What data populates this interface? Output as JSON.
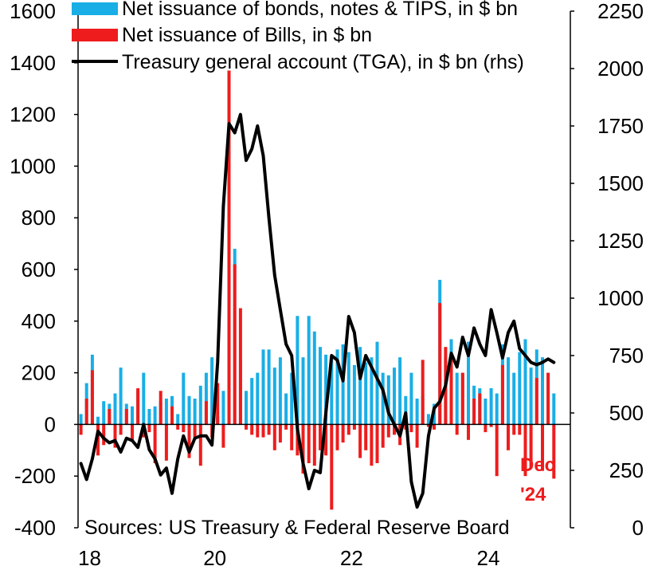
{
  "chart_data": {
    "type": "bar",
    "title": "",
    "xlabel": "",
    "ylabel": "",
    "ylim": [
      -400,
      1600
    ],
    "y2lim": [
      0,
      2250
    ],
    "yticks": [
      -400,
      -200,
      0,
      200,
      400,
      600,
      800,
      1000,
      1200,
      1400,
      1600
    ],
    "y2ticks": [
      0,
      250,
      500,
      750,
      1000,
      1250,
      1500,
      1750,
      2000,
      2250
    ],
    "xlim": [
      2018.0,
      2025.2
    ],
    "xticks": [
      {
        "value": 2018,
        "label": "18"
      },
      {
        "value": 2020,
        "label": "20"
      },
      {
        "value": 2022,
        "label": "22"
      },
      {
        "value": 2024,
        "label": "24"
      }
    ],
    "legend_position": "top-left",
    "series": [
      {
        "name": "Net issuance of bonds, notes & TIPS, in $ bn",
        "type": "bar",
        "axis": "left",
        "color": "#19aee6",
        "x": [
          "2018-01",
          "2018-02",
          "2018-03",
          "2018-04",
          "2018-05",
          "2018-06",
          "2018-07",
          "2018-08",
          "2018-09",
          "2018-10",
          "2018-11",
          "2018-12",
          "2019-01",
          "2019-02",
          "2019-03",
          "2019-04",
          "2019-05",
          "2019-06",
          "2019-07",
          "2019-08",
          "2019-09",
          "2019-10",
          "2019-11",
          "2019-12",
          "2020-01",
          "2020-02",
          "2020-03",
          "2020-04",
          "2020-05",
          "2020-06",
          "2020-07",
          "2020-08",
          "2020-09",
          "2020-10",
          "2020-11",
          "2020-12",
          "2021-01",
          "2021-02",
          "2021-03",
          "2021-04",
          "2021-05",
          "2021-06",
          "2021-07",
          "2021-08",
          "2021-09",
          "2021-10",
          "2021-11",
          "2021-12",
          "2022-01",
          "2022-02",
          "2022-03",
          "2022-04",
          "2022-05",
          "2022-06",
          "2022-07",
          "2022-08",
          "2022-09",
          "2022-10",
          "2022-11",
          "2022-12",
          "2023-01",
          "2023-02",
          "2023-03",
          "2023-04",
          "2023-05",
          "2023-06",
          "2023-07",
          "2023-08",
          "2023-09",
          "2023-10",
          "2023-11",
          "2023-12",
          "2024-01",
          "2024-02",
          "2024-03",
          "2024-04",
          "2024-05",
          "2024-06",
          "2024-07",
          "2024-08",
          "2024-09",
          "2024-10",
          "2024-11",
          "2024-12"
        ],
        "values": [
          40,
          160,
          270,
          30,
          90,
          80,
          120,
          220,
          80,
          70,
          130,
          200,
          60,
          70,
          90,
          100,
          110,
          40,
          200,
          110,
          100,
          150,
          200,
          260,
          30,
          130,
          700,
          680,
          250,
          130,
          180,
          200,
          290,
          290,
          220,
          260,
          120,
          200,
          420,
          260,
          420,
          360,
          300,
          270,
          260,
          290,
          310,
          280,
          230,
          300,
          240,
          260,
          320,
          200,
          190,
          220,
          260,
          110,
          200,
          100,
          110,
          40,
          80,
          560,
          260,
          330,
          200,
          200,
          320,
          150,
          140,
          100,
          140,
          120,
          310,
          260,
          200,
          280,
          330,
          220,
          290,
          260,
          200,
          120
        ]
      },
      {
        "name": "Net issuance of Bills, in $ bn",
        "type": "bar",
        "axis": "left",
        "color": "#ee1c1c",
        "x": [
          "2018-01",
          "2018-02",
          "2018-03",
          "2018-04",
          "2018-05",
          "2018-06",
          "2018-07",
          "2018-08",
          "2018-09",
          "2018-10",
          "2018-11",
          "2018-12",
          "2019-01",
          "2019-02",
          "2019-03",
          "2019-04",
          "2019-05",
          "2019-06",
          "2019-07",
          "2019-08",
          "2019-09",
          "2019-10",
          "2019-11",
          "2019-12",
          "2020-01",
          "2020-02",
          "2020-03",
          "2020-04",
          "2020-05",
          "2020-06",
          "2020-07",
          "2020-08",
          "2020-09",
          "2020-10",
          "2020-11",
          "2020-12",
          "2021-01",
          "2021-02",
          "2021-03",
          "2021-04",
          "2021-05",
          "2021-06",
          "2021-07",
          "2021-08",
          "2021-09",
          "2021-10",
          "2021-11",
          "2021-12",
          "2022-01",
          "2022-02",
          "2022-03",
          "2022-04",
          "2022-05",
          "2022-06",
          "2022-07",
          "2022-08",
          "2022-09",
          "2022-10",
          "2022-11",
          "2022-12",
          "2023-01",
          "2023-02",
          "2023-03",
          "2023-04",
          "2023-05",
          "2023-06",
          "2023-07",
          "2023-08",
          "2023-09",
          "2023-10",
          "2023-11",
          "2023-12",
          "2024-01",
          "2024-02",
          "2024-03",
          "2024-04",
          "2024-05",
          "2024-06",
          "2024-07",
          "2024-08",
          "2024-09",
          "2024-10",
          "2024-11",
          "2024-12"
        ],
        "values": [
          -40,
          100,
          210,
          -120,
          -80,
          60,
          -90,
          -40,
          60,
          -60,
          140,
          -50,
          -30,
          -150,
          130,
          -140,
          70,
          -20,
          -30,
          -130,
          -50,
          -160,
          90,
          -50,
          160,
          -90,
          1370,
          620,
          450,
          -20,
          -40,
          -50,
          -50,
          -40,
          -100,
          -70,
          -20,
          -100,
          -120,
          -190,
          -150,
          -160,
          -100,
          -120,
          -330,
          -100,
          -70,
          -40,
          -20,
          -130,
          -100,
          -160,
          -150,
          -90,
          -50,
          -40,
          -80,
          -20,
          -30,
          -90,
          250,
          -10,
          -20,
          470,
          300,
          260,
          -40,
          200,
          -60,
          100,
          120,
          -30,
          -10,
          -200,
          230,
          -100,
          -40,
          -40,
          -200,
          -170,
          180,
          -180,
          200,
          -210
        ]
      },
      {
        "name": "Treasury general account (TGA), in $ bn (rhs)",
        "type": "line",
        "axis": "right",
        "color": "#000000",
        "x": [
          "2018-01",
          "2018-02",
          "2018-03",
          "2018-04",
          "2018-05",
          "2018-06",
          "2018-07",
          "2018-08",
          "2018-09",
          "2018-10",
          "2018-11",
          "2018-12",
          "2019-01",
          "2019-02",
          "2019-03",
          "2019-04",
          "2019-05",
          "2019-06",
          "2019-07",
          "2019-08",
          "2019-09",
          "2019-10",
          "2019-11",
          "2019-12",
          "2020-01",
          "2020-02",
          "2020-03",
          "2020-04",
          "2020-05",
          "2020-06",
          "2020-07",
          "2020-08",
          "2020-09",
          "2020-10",
          "2020-11",
          "2020-12",
          "2021-01",
          "2021-02",
          "2021-03",
          "2021-04",
          "2021-05",
          "2021-06",
          "2021-07",
          "2021-08",
          "2021-09",
          "2021-10",
          "2021-11",
          "2021-12",
          "2022-01",
          "2022-02",
          "2022-03",
          "2022-04",
          "2022-05",
          "2022-06",
          "2022-07",
          "2022-08",
          "2022-09",
          "2022-10",
          "2022-11",
          "2022-12",
          "2023-01",
          "2023-02",
          "2023-03",
          "2023-04",
          "2023-05",
          "2023-06",
          "2023-07",
          "2023-08",
          "2023-09",
          "2023-10",
          "2023-11",
          "2023-12",
          "2024-01",
          "2024-02",
          "2024-03",
          "2024-04",
          "2024-05",
          "2024-06",
          "2024-07",
          "2024-08",
          "2024-09",
          "2024-10",
          "2024-11",
          "2024-12"
        ],
        "values": [
          280,
          210,
          300,
          420,
          390,
          370,
          380,
          330,
          390,
          380,
          350,
          450,
          340,
          300,
          230,
          260,
          150,
          300,
          400,
          330,
          390,
          400,
          400,
          360,
          720,
          1400,
          1760,
          1720,
          1800,
          1600,
          1650,
          1750,
          1620,
          1350,
          1100,
          950,
          800,
          750,
          430,
          280,
          170,
          250,
          240,
          500,
          750,
          730,
          640,
          920,
          850,
          650,
          750,
          700,
          650,
          600,
          500,
          450,
          400,
          500,
          200,
          90,
          150,
          400,
          520,
          550,
          620,
          760,
          700,
          830,
          750,
          870,
          800,
          750,
          950,
          850,
          740,
          850,
          900,
          780,
          750,
          720,
          710,
          720,
          735,
          720
        ]
      }
    ],
    "annotations": [
      {
        "text": "Dec",
        "color": "#ee1c1c"
      },
      {
        "text": "'24",
        "color": "#ee1c1c"
      }
    ],
    "source_note": "Sources: US Treasury & Federal Reserve Board"
  }
}
